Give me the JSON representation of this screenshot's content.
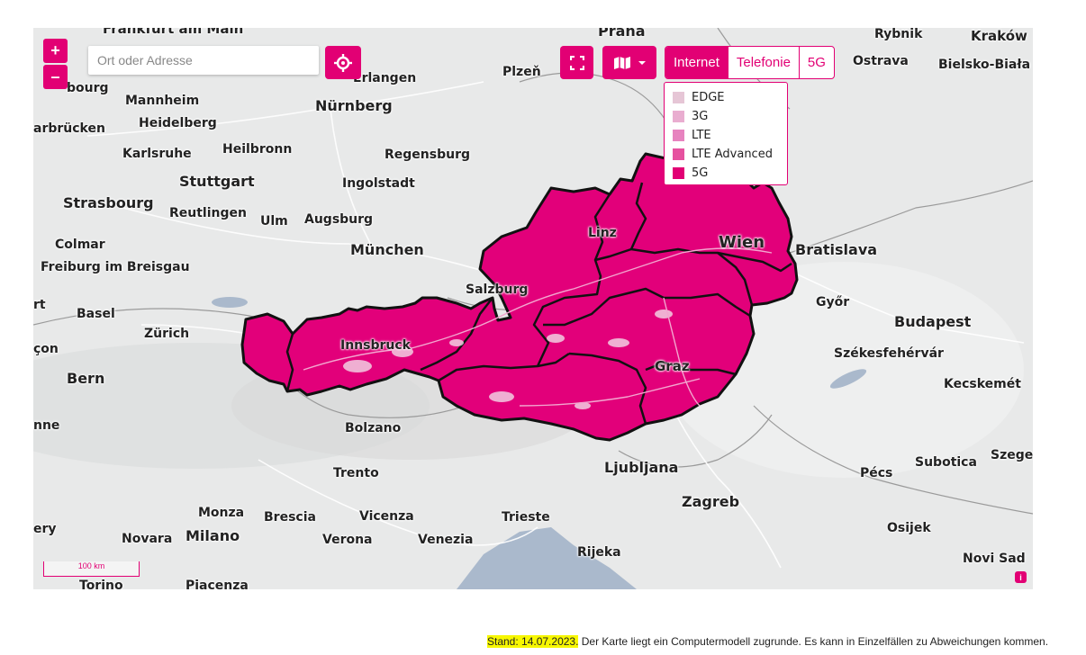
{
  "map": {
    "zoom_in_label": "+",
    "zoom_out_label": "–",
    "search_placeholder": "Ort oder Adresse",
    "locate_icon": "crosshair-icon",
    "fullscreen_icon": "fullscreen-icon",
    "layers_icon": "map-layers-icon",
    "tabs": [
      {
        "label": "Internet",
        "active": true
      },
      {
        "label": "Telefonie",
        "active": false
      },
      {
        "label": "5G",
        "active": false
      }
    ],
    "legend": [
      {
        "label": "EDGE",
        "color": "#e6c6d6"
      },
      {
        "label": "3G",
        "color": "#e9add0"
      },
      {
        "label": "LTE",
        "color": "#e783bf"
      },
      {
        "label": "LTE Advanced",
        "color": "#e6529f"
      },
      {
        "label": "5G",
        "color": "#e20074"
      }
    ],
    "scale_label": "100 km",
    "info_label": "i",
    "accent_color": "#e20074",
    "cities": {
      "frankfurt": "Frankfurt am Main",
      "praha": "Praha",
      "rybnik": "Rybnik",
      "krakow": "Kraków",
      "plzen": "Plzeň",
      "ostrava": "Ostrava",
      "bielsko": "Bielsko-Biała",
      "erlangen": "Erlangen",
      "burg": "bourg",
      "mannheim": "Mannheim",
      "nurnberg": "Nürnberg",
      "heidelberg": "Heidelberg",
      "saarbrucken": "arbrücken",
      "karlsruhe": "Karlsruhe",
      "heilbronn": "Heilbronn",
      "regensburg": "Regensburg",
      "stuttgart": "Stuttgart",
      "ingolstadt": "Ingolstadt",
      "strasbourg": "Strasbourg",
      "reutlingen": "Reutlingen",
      "ulm": "Ulm",
      "augsburg": "Augsburg",
      "linz": "Linz",
      "wien": "Wien",
      "colmar": "Colmar",
      "munchen": "München",
      "bratislava": "Bratislava",
      "freiburg": "Freiburg im Breisgau",
      "salzburg": "Salzburg",
      "basel": "Basel",
      "gyor": "Győr",
      "rt": "rt",
      "budapest": "Budapest",
      "zurich": "Zürich",
      "innsbruck": "Innsbruck",
      "con": "çon",
      "szekesfehervar": "Székesfehérvár",
      "bern": "Bern",
      "graz": "Graz",
      "kecskemet": "Kecskemét",
      "nne": "nne",
      "bolzano": "Bolzano",
      "szeged": "Szege",
      "subotica": "Subotica",
      "trento": "Trento",
      "ljubljana": "Ljubljana",
      "pecs": "Pécs",
      "zagreb": "Zagreb",
      "monza": "Monza",
      "brescia": "Brescia",
      "vicenza": "Vicenza",
      "trieste": "Trieste",
      "ery": "ery",
      "osijek": "Osijek",
      "novara": "Novara",
      "milano": "Milano",
      "verona": "Verona",
      "venezia": "Venezia",
      "rijeka": "Rijeka",
      "novisad": "Novi Sad",
      "torino": "Torino",
      "piacenza": "Piacenza"
    }
  },
  "footnote": {
    "date": "Stand: 14.07.2023.",
    "text": " Der Karte liegt ein Computermodell zugrunde. Es kann in Einzelfällen zu Abweichungen kommen."
  }
}
